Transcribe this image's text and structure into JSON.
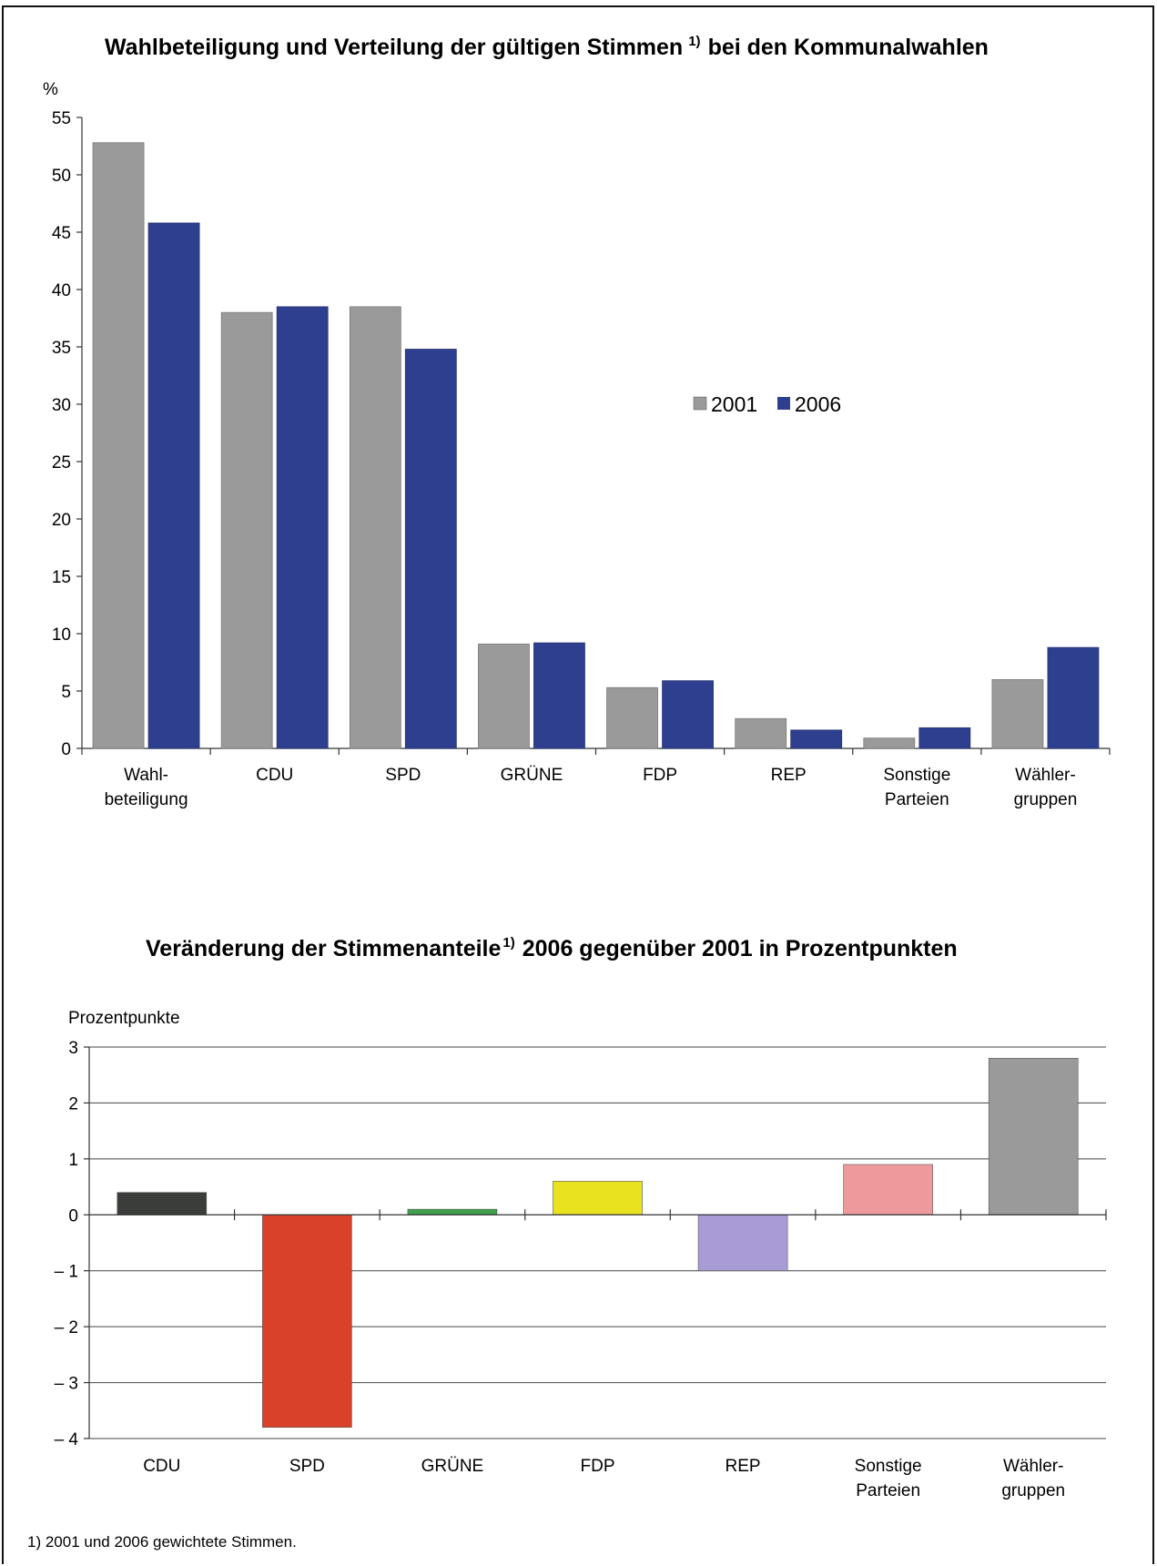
{
  "footnote": "1) 2001 und 2006 gewichtete Stimmen.",
  "chart_data": [
    {
      "type": "bar",
      "title": "Wahlbeteiligung und Verteilung der gültigen Stimmen",
      "title_footnote_mark": "1)",
      "title_suffix": "bei den Kommunalwahlen",
      "ylabel": "%",
      "ylim": [
        0,
        55
      ],
      "yticks": [
        0,
        5,
        10,
        15,
        20,
        25,
        30,
        35,
        40,
        45,
        50,
        55
      ],
      "grid": false,
      "legend_position": "right",
      "categories": [
        [
          "Wahl-",
          "beteiligung"
        ],
        [
          "CDU"
        ],
        [
          "SPD"
        ],
        [
          "GRÜNE"
        ],
        [
          "FDP"
        ],
        [
          "REP"
        ],
        [
          "Sonstige",
          "Parteien"
        ],
        [
          "Wähler-",
          "gruppen"
        ]
      ],
      "series": [
        {
          "name": "2001",
          "color": "#9a9a9a",
          "values": [
            52.8,
            38.0,
            38.5,
            9.1,
            5.3,
            2.6,
            0.9,
            6.0
          ]
        },
        {
          "name": "2006",
          "color": "#2e3f8f",
          "values": [
            45.8,
            38.5,
            34.8,
            9.2,
            5.9,
            1.6,
            1.8,
            8.8
          ]
        }
      ]
    },
    {
      "type": "bar",
      "title": "Veränderung der Stimmenanteile",
      "title_footnote_mark": "1)",
      "title_suffix": "2006 gegenüber 2001 in Prozentpunkten",
      "ylabel": "Prozentpunkte",
      "ylim": [
        -4,
        3
      ],
      "yticks": [
        3,
        2,
        1,
        0,
        -1,
        -2,
        -3,
        -4
      ],
      "ytick_labels": [
        "3",
        "2",
        "1",
        "0",
        "– 1",
        "– 2",
        "– 3",
        "– 4"
      ],
      "grid": true,
      "categories": [
        [
          "CDU"
        ],
        [
          "SPD"
        ],
        [
          "GRÜNE"
        ],
        [
          "FDP"
        ],
        [
          "REP"
        ],
        [
          "Sonstige",
          "Parteien"
        ],
        [
          "Wähler-",
          "gruppen"
        ]
      ],
      "values": [
        0.4,
        -3.8,
        0.1,
        0.6,
        -1.0,
        0.9,
        2.8
      ],
      "colors": [
        "#3a3d3a",
        "#d9412a",
        "#3fa14a",
        "#e8e21f",
        "#a99bd6",
        "#ee9a9d",
        "#9a9a9a"
      ]
    }
  ]
}
